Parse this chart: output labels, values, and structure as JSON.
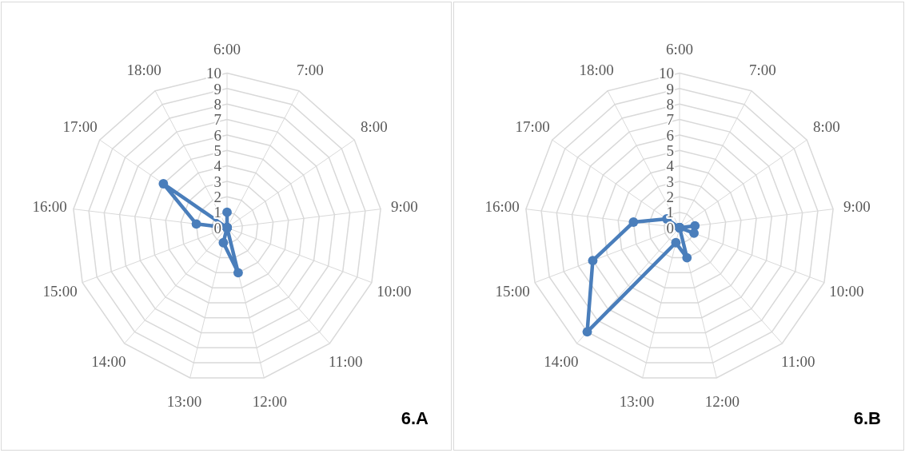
{
  "chart_data": [
    {
      "type": "radar",
      "categories": [
        "6:00",
        "7:00",
        "8:00",
        "9:00",
        "10:00",
        "11:00",
        "12:00",
        "13:00",
        "14:00",
        "15:00",
        "16:00",
        "17:00",
        "18:00"
      ],
      "series": [
        {
          "color": "#4a7ebb",
          "values": [
            1,
            0,
            0,
            0,
            0,
            0,
            3,
            1,
            0,
            0,
            2,
            5,
            0
          ]
        }
      ],
      "ylim": [
        0,
        10
      ],
      "yticks": [
        0,
        1,
        2,
        3,
        4,
        5,
        6,
        7,
        8,
        9,
        10
      ],
      "grid": true,
      "marker": "circle",
      "annotations": [
        "6.A"
      ]
    },
    {
      "type": "radar",
      "categories": [
        "6:00",
        "7:00",
        "8:00",
        "9:00",
        "10:00",
        "11:00",
        "12:00",
        "13:00",
        "14:00",
        "15:00",
        "16:00",
        "17:00",
        "18:00"
      ],
      "series": [
        {
          "color": "#4a7ebb",
          "values": [
            0,
            0,
            0,
            1,
            1,
            0,
            2,
            1,
            9,
            6,
            3,
            1,
            0
          ]
        }
      ],
      "ylim": [
        0,
        10
      ],
      "yticks": [
        0,
        1,
        2,
        3,
        4,
        5,
        6,
        7,
        8,
        9,
        10
      ],
      "grid": true,
      "marker": "circle",
      "annotations": [
        "6.B"
      ]
    }
  ]
}
